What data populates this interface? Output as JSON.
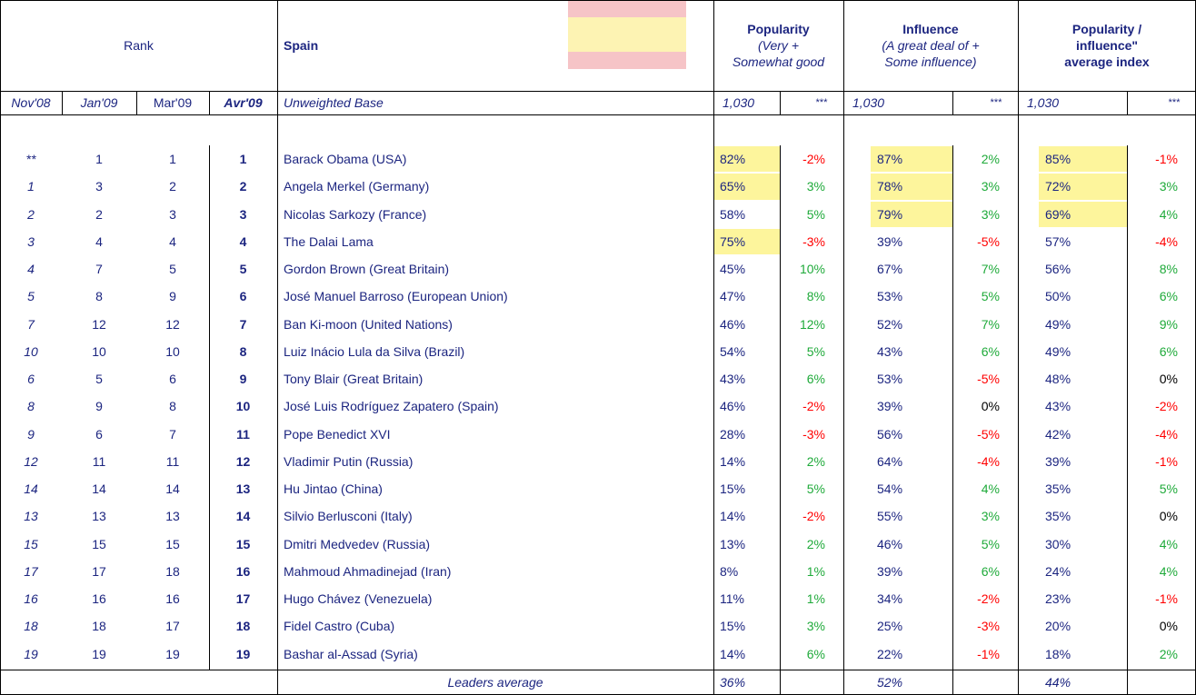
{
  "header": {
    "rank": "Rank",
    "country": "Spain",
    "popularity": {
      "title": "Popularity",
      "subtitle": [
        "(Very +",
        "Somewhat good"
      ]
    },
    "influence": {
      "title": "Influence",
      "subtitle": [
        "(A great deal of +",
        "Some influence)"
      ]
    },
    "index": {
      "title": [
        "Popularity /",
        "influence\"",
        "average index"
      ]
    }
  },
  "subheader": {
    "periods": [
      "Nov'08",
      "Jan'09",
      "Mar'09",
      "Avr'09"
    ],
    "base_label": "Unweighted Base",
    "base": [
      "1,030",
      "***",
      "1,030",
      "***",
      "1,030",
      "***"
    ]
  },
  "rows": [
    [
      "**",
      "1",
      "1",
      "1",
      "Barack Obama (USA)",
      "82%",
      "-2%",
      "87%",
      "2%",
      "85%",
      "-1%"
    ],
    [
      "1",
      "3",
      "2",
      "2",
      "Angela Merkel (Germany)",
      "65%",
      "3%",
      "78%",
      "3%",
      "72%",
      "3%"
    ],
    [
      "2",
      "2",
      "3",
      "3",
      "Nicolas Sarkozy (France)",
      "58%",
      "5%",
      "79%",
      "3%",
      "69%",
      "4%"
    ],
    [
      "3",
      "4",
      "4",
      "4",
      "The Dalai Lama",
      "75%",
      "-3%",
      "39%",
      "-5%",
      "57%",
      "-4%"
    ],
    [
      "4",
      "7",
      "5",
      "5",
      "Gordon Brown (Great Britain)",
      "45%",
      "10%",
      "67%",
      "7%",
      "56%",
      "8%"
    ],
    [
      "5",
      "8",
      "9",
      "6",
      "José Manuel Barroso (European Union)",
      "47%",
      "8%",
      "53%",
      "5%",
      "50%",
      "6%"
    ],
    [
      "7",
      "12",
      "12",
      "7",
      "Ban Ki-moon (United Nations)",
      "46%",
      "12%",
      "52%",
      "7%",
      "49%",
      "9%"
    ],
    [
      "10",
      "10",
      "10",
      "8",
      "Luiz Inácio Lula da Silva (Brazil)",
      "54%",
      "5%",
      "43%",
      "6%",
      "49%",
      "6%"
    ],
    [
      "6",
      "5",
      "6",
      "9",
      "Tony Blair (Great Britain)",
      "43%",
      "6%",
      "53%",
      "-5%",
      "48%",
      "0%"
    ],
    [
      "8",
      "9",
      "8",
      "10",
      "José Luis Rodríguez Zapatero (Spain)",
      "46%",
      "-2%",
      "39%",
      "0%",
      "43%",
      "-2%"
    ],
    [
      "9",
      "6",
      "7",
      "11",
      "Pope Benedict XVI",
      "28%",
      "-3%",
      "56%",
      "-5%",
      "42%",
      "-4%"
    ],
    [
      "12",
      "11",
      "11",
      "12",
      "Vladimir Putin (Russia)",
      "14%",
      "2%",
      "64%",
      "-4%",
      "39%",
      "-1%"
    ],
    [
      "14",
      "14",
      "14",
      "13",
      "Hu Jintao (China)",
      "15%",
      "5%",
      "54%",
      "4%",
      "35%",
      "5%"
    ],
    [
      "13",
      "13",
      "13",
      "14",
      "Silvio Berlusconi (Italy)",
      "14%",
      "-2%",
      "55%",
      "3%",
      "35%",
      "0%"
    ],
    [
      "15",
      "15",
      "15",
      "15",
      "Dmitri Medvedev (Russia)",
      "13%",
      "2%",
      "46%",
      "5%",
      "30%",
      "4%"
    ],
    [
      "17",
      "17",
      "18",
      "16",
      "Mahmoud Ahmadinejad (Iran)",
      "8%",
      "1%",
      "39%",
      "6%",
      "24%",
      "4%"
    ],
    [
      "16",
      "16",
      "16",
      "17",
      "Hugo Chávez (Venezuela)",
      "11%",
      "1%",
      "34%",
      "-2%",
      "23%",
      "-1%"
    ],
    [
      "18",
      "18",
      "17",
      "18",
      "Fidel Castro (Cuba)",
      "15%",
      "3%",
      "25%",
      "-3%",
      "20%",
      "0%"
    ],
    [
      "19",
      "19",
      "19",
      "19",
      "Bashar al-Assad (Syria)",
      "14%",
      "6%",
      "22%",
      "-1%",
      "18%",
      "2%"
    ]
  ],
  "footer": {
    "label": "Leaders average",
    "values": [
      "36%",
      "52%",
      "44%"
    ]
  }
}
